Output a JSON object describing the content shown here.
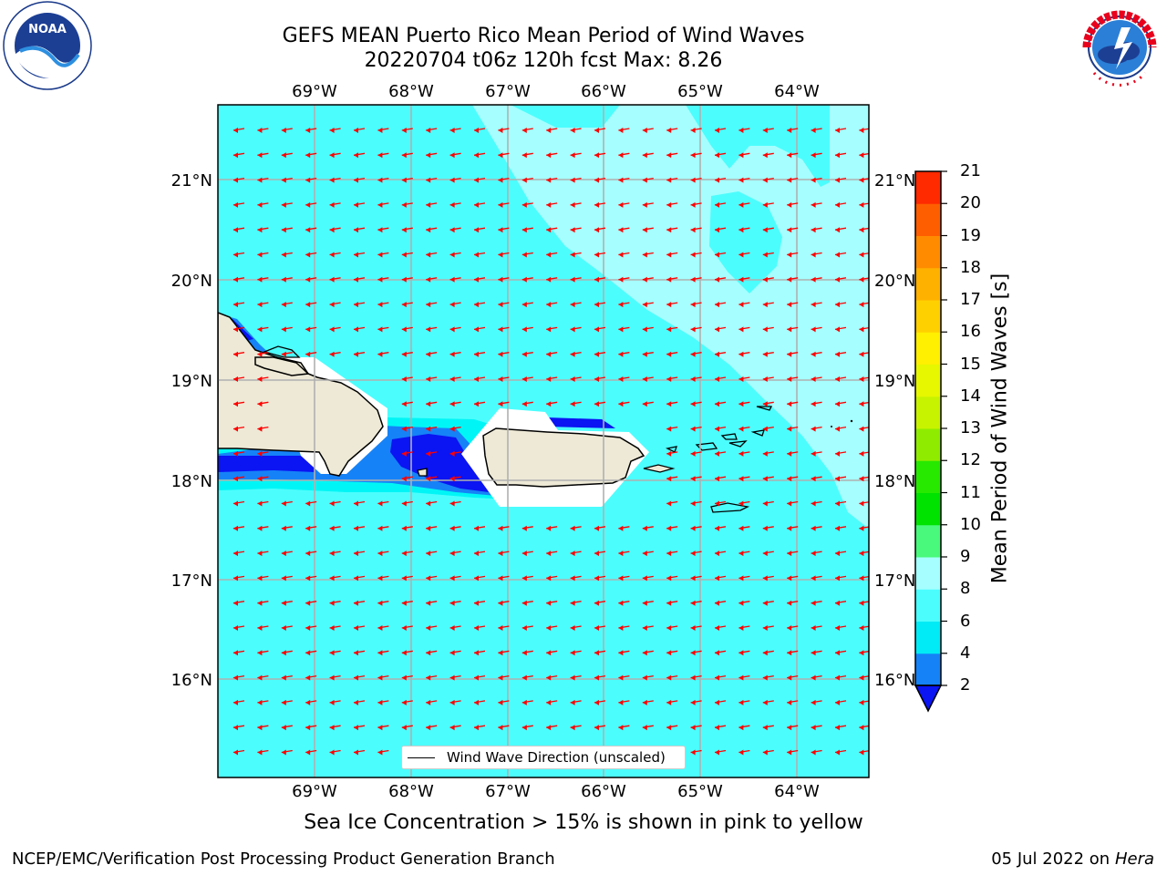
{
  "header": {
    "title_line1": "GEFS MEAN Puerto Rico Mean Period of Wind Waves",
    "title_line2": "20220704 t06z 120h fcst   Max: 8.26"
  },
  "logos": {
    "left": {
      "icon": "noaa-logo-icon",
      "text": "NOAA"
    },
    "right": {
      "icon": "national-weather-service-logo-icon"
    }
  },
  "map": {
    "lon_labels": [
      "69°W",
      "68°W",
      "67°W",
      "66°W",
      "65°W",
      "64°W"
    ],
    "lat_labels": [
      "21°N",
      "20°N",
      "19°N",
      "18°N",
      "17°N",
      "16°N"
    ],
    "legend_label": "Wind Wave Direction (unscaled)",
    "colors": {
      "water_main": "#4cfdfd",
      "water_light": "#a6fefe",
      "water_cyan": "#00f6f6",
      "water_blue": "#1682f7",
      "water_dark": "#0b14f2",
      "land": "#ede9d6",
      "arrow": "#ff0000",
      "grid": "#b0b0b0"
    }
  },
  "colorbar": {
    "label": "Mean Period of Wind Waves [s]",
    "ticks": [
      "2",
      "4",
      "6",
      "8",
      "9",
      "10",
      "11",
      "12",
      "13",
      "14",
      "15",
      "16",
      "17",
      "18",
      "19",
      "20",
      "21"
    ],
    "colors": [
      "#1682f7",
      "#00ebf6",
      "#4cfdfd",
      "#a6fefe",
      "#49f97b",
      "#00e200",
      "#27e900",
      "#8fec00",
      "#c8f300",
      "#e6f700",
      "#ffef00",
      "#ffd000",
      "#ffb100",
      "#ff8c00",
      "#ff5e00",
      "#ff2a00"
    ],
    "underflow_color": "#0b14f2"
  },
  "captions": {
    "sea_ice_note": "Sea Ice Concentration > 15% is shown in pink to yellow"
  },
  "footer": {
    "left": "NCEP/EMC/Verification Post Processing Product Generation Branch",
    "right_prefix": "05 Jul 2022 on ",
    "right_host": "Hera"
  }
}
